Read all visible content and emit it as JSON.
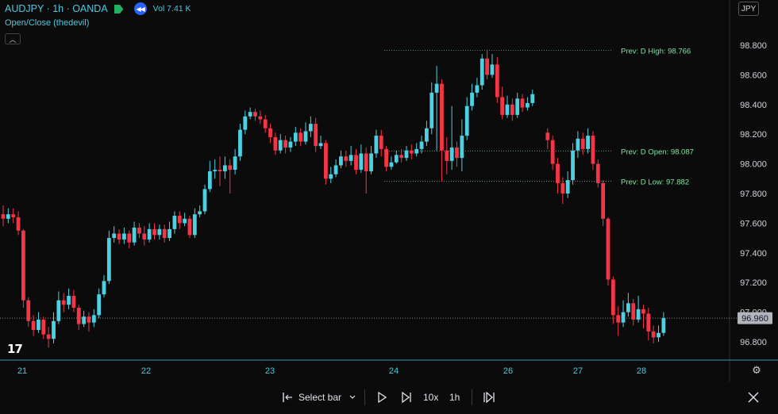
{
  "header": {
    "symbol": "AUDJPY · 1h · OANDA",
    "volume": "Vol 7.41 K",
    "indicator": "Open/Close (thedevil)"
  },
  "currency_button": "JPY",
  "bottom_bar": {
    "select_bar": "Select bar",
    "speed": "10x",
    "interval": "1h"
  },
  "colors": {
    "up": "#4dd0e1",
    "down": "#f23645",
    "axis_text": "#d1d4dc",
    "level_text": "#7ee8a0",
    "date_text": "#4fc9e0"
  },
  "chart_data": {
    "type": "candlestick",
    "symbol": "AUDJPY",
    "interval": "1h",
    "ylim": [
      96.7,
      98.9
    ],
    "y_ticks": [
      "98.800",
      "98.600",
      "98.400",
      "98.200",
      "98.000",
      "97.800",
      "97.600",
      "97.400",
      "97.200",
      "97.000",
      "96.800"
    ],
    "x_ticks": [
      "21",
      "22",
      "23",
      "24",
      "26",
      "27",
      "28"
    ],
    "current_price": "96.960",
    "levels": [
      {
        "label": "Prev: D High: 98.766",
        "value": 98.766
      },
      {
        "label": "Prev: D Open: 98.087",
        "value": 98.087
      },
      {
        "label": "Prev: D Low: 97.882",
        "value": 97.882
      }
    ],
    "candles": [
      [
        97.66,
        97.63,
        97.72,
        97.58
      ],
      [
        97.63,
        97.66,
        97.7,
        97.6
      ],
      [
        97.66,
        97.64,
        97.7,
        97.6
      ],
      [
        97.64,
        97.55,
        97.68,
        97.52
      ],
      [
        97.55,
        97.08,
        97.56,
        97.03
      ],
      [
        97.08,
        96.94,
        97.1,
        96.9
      ],
      [
        96.94,
        96.88,
        96.98,
        96.84
      ],
      [
        96.88,
        96.95,
        97.0,
        96.86
      ],
      [
        96.95,
        96.85,
        96.97,
        96.82
      ],
      [
        96.85,
        96.82,
        96.9,
        96.76
      ],
      [
        96.82,
        96.94,
        97.0,
        96.79
      ],
      [
        96.94,
        97.08,
        97.14,
        96.92
      ],
      [
        97.08,
        97.05,
        97.13,
        97.0
      ],
      [
        97.05,
        97.11,
        97.16,
        97.02
      ],
      [
        97.11,
        97.03,
        97.15,
        97.0
      ],
      [
        97.03,
        96.92,
        97.05,
        96.88
      ],
      [
        96.92,
        96.97,
        97.01,
        96.9
      ],
      [
        96.97,
        96.93,
        97.0,
        96.87
      ],
      [
        96.93,
        96.98,
        97.02,
        96.9
      ],
      [
        96.98,
        97.12,
        97.16,
        96.96
      ],
      [
        97.12,
        97.21,
        97.25,
        97.1
      ],
      [
        97.21,
        97.5,
        97.55,
        97.19
      ],
      [
        97.5,
        97.53,
        97.58,
        97.47
      ],
      [
        97.53,
        97.49,
        97.56,
        97.46
      ],
      [
        97.49,
        97.53,
        97.57,
        97.46
      ],
      [
        97.53,
        97.47,
        97.55,
        97.43
      ],
      [
        97.47,
        97.57,
        97.61,
        97.45
      ],
      [
        97.57,
        97.53,
        97.6,
        97.5
      ],
      [
        97.53,
        97.49,
        97.58,
        97.45
      ],
      [
        97.49,
        97.56,
        97.6,
        97.47
      ],
      [
        97.56,
        97.52,
        97.6,
        97.49
      ],
      [
        97.52,
        97.56,
        97.59,
        97.49
      ],
      [
        97.56,
        97.5,
        97.59,
        97.47
      ],
      [
        97.5,
        97.56,
        97.61,
        97.48
      ],
      [
        97.56,
        97.65,
        97.68,
        97.53
      ],
      [
        97.65,
        97.6,
        97.68,
        97.56
      ],
      [
        97.6,
        97.63,
        97.67,
        97.58
      ],
      [
        97.63,
        97.52,
        97.65,
        97.5
      ],
      [
        97.52,
        97.66,
        97.7,
        97.5
      ],
      [
        97.66,
        97.68,
        97.72,
        97.64
      ],
      [
        97.68,
        97.83,
        97.86,
        97.66
      ],
      [
        97.83,
        97.95,
        98.02,
        97.81
      ],
      [
        97.95,
        97.96,
        98.03,
        97.9
      ],
      [
        97.96,
        97.95,
        98.05,
        97.85
      ],
      [
        97.95,
        97.99,
        98.05,
        97.9
      ],
      [
        97.99,
        97.96,
        98.03,
        97.8
      ],
      [
        97.96,
        98.05,
        98.1,
        97.93
      ],
      [
        98.05,
        98.23,
        98.27,
        98.02
      ],
      [
        98.23,
        98.32,
        98.36,
        98.2
      ],
      [
        98.32,
        98.35,
        98.38,
        98.3
      ],
      [
        98.35,
        98.32,
        98.37,
        98.29
      ],
      [
        98.32,
        98.3,
        98.36,
        98.27
      ],
      [
        98.3,
        98.24,
        98.33,
        98.21
      ],
      [
        98.24,
        98.18,
        98.27,
        98.14
      ],
      [
        98.18,
        98.09,
        98.21,
        98.06
      ],
      [
        98.09,
        98.16,
        98.2,
        98.07
      ],
      [
        98.16,
        98.11,
        98.19,
        98.07
      ],
      [
        98.11,
        98.15,
        98.18,
        98.08
      ],
      [
        98.15,
        98.21,
        98.25,
        98.12
      ],
      [
        98.21,
        98.15,
        98.24,
        98.12
      ],
      [
        98.15,
        98.22,
        98.28,
        98.13
      ],
      [
        98.22,
        98.27,
        98.32,
        98.18
      ],
      [
        98.27,
        98.12,
        98.31,
        98.08
      ],
      [
        98.12,
        98.14,
        98.19,
        98.1
      ],
      [
        98.14,
        97.9,
        98.16,
        97.86
      ],
      [
        97.9,
        97.93,
        97.98,
        97.87
      ],
      [
        97.93,
        97.99,
        98.03,
        97.91
      ],
      [
        97.99,
        98.05,
        98.09,
        97.97
      ],
      [
        98.05,
        98.02,
        98.09,
        97.98
      ],
      [
        98.02,
        98.06,
        98.12,
        97.99
      ],
      [
        98.06,
        97.96,
        98.1,
        97.93
      ],
      [
        97.96,
        98.07,
        98.13,
        97.94
      ],
      [
        98.07,
        97.95,
        98.11,
        97.8
      ],
      [
        97.95,
        98.07,
        98.12,
        97.93
      ],
      [
        98.07,
        98.19,
        98.23,
        98.04
      ],
      [
        98.19,
        98.1,
        98.23,
        98.05
      ],
      [
        98.1,
        97.98,
        98.12,
        97.95
      ],
      [
        97.98,
        98.01,
        98.05,
        97.96
      ],
      [
        98.01,
        98.06,
        98.09,
        98.0
      ],
      [
        98.06,
        98.04,
        98.1,
        98.01
      ],
      [
        98.04,
        98.09,
        98.12,
        98.02
      ],
      [
        98.09,
        98.07,
        98.13,
        98.03
      ],
      [
        98.07,
        98.1,
        98.14,
        98.05
      ],
      [
        98.1,
        98.15,
        98.19,
        98.07
      ],
      [
        98.15,
        98.24,
        98.29,
        98.12
      ],
      [
        98.24,
        98.48,
        98.55,
        98.2
      ],
      [
        98.48,
        98.54,
        98.66,
        98.09
      ],
      [
        98.54,
        98.09,
        98.57,
        97.88
      ],
      [
        98.09,
        98.02,
        98.18,
        97.93
      ],
      [
        98.02,
        98.11,
        98.39,
        97.96
      ],
      [
        98.11,
        98.04,
        98.15,
        97.98
      ],
      [
        98.04,
        98.19,
        98.3,
        97.95
      ],
      [
        98.19,
        98.39,
        98.45,
        98.16
      ],
      [
        98.39,
        98.48,
        98.54,
        98.36
      ],
      [
        98.48,
        98.53,
        98.58,
        98.45
      ],
      [
        98.53,
        98.71,
        98.74,
        98.5
      ],
      [
        98.71,
        98.6,
        98.77,
        98.57
      ],
      [
        98.6,
        98.67,
        98.74,
        98.58
      ],
      [
        98.67,
        98.45,
        98.72,
        98.41
      ],
      [
        98.45,
        98.33,
        98.52,
        98.3
      ],
      [
        98.33,
        98.4,
        98.46,
        98.31
      ],
      [
        98.4,
        98.33,
        98.44,
        98.29
      ],
      [
        98.33,
        98.44,
        98.48,
        98.31
      ],
      [
        98.44,
        98.38,
        98.47,
        98.35
      ],
      [
        98.38,
        98.41,
        98.45,
        98.36
      ],
      [
        98.41,
        98.47,
        98.5,
        98.39
      ],
      null,
      null,
      [
        98.21,
        98.16,
        98.24,
        98.1
      ],
      [
        98.16,
        98.0,
        98.19,
        97.96
      ],
      [
        98.0,
        97.87,
        98.04,
        97.8
      ],
      [
        97.87,
        97.8,
        97.91,
        97.73
      ],
      [
        97.8,
        97.89,
        97.95,
        97.77
      ],
      [
        97.89,
        98.09,
        98.14,
        97.86
      ],
      [
        98.09,
        98.17,
        98.22,
        98.04
      ],
      [
        98.17,
        98.1,
        98.21,
        98.06
      ],
      [
        98.1,
        98.19,
        98.24,
        98.07
      ],
      [
        98.19,
        98.0,
        98.22,
        97.96
      ],
      [
        98.0,
        97.87,
        98.03,
        97.84
      ],
      [
        97.87,
        97.63,
        97.89,
        97.58
      ],
      [
        97.63,
        97.22,
        97.64,
        97.18
      ],
      [
        97.22,
        96.98,
        97.24,
        96.92
      ],
      [
        96.98,
        96.93,
        97.04,
        96.84
      ],
      [
        96.93,
        97.0,
        97.08,
        96.9
      ],
      [
        97.0,
        97.06,
        97.13,
        96.97
      ],
      [
        97.06,
        96.95,
        97.09,
        96.91
      ],
      [
        96.95,
        97.02,
        97.11,
        96.93
      ],
      [
        97.02,
        96.99,
        97.05,
        96.89
      ],
      [
        96.99,
        96.87,
        97.03,
        96.81
      ],
      [
        96.87,
        96.83,
        96.91,
        96.79
      ],
      [
        96.83,
        96.86,
        96.91,
        96.8
      ],
      [
        96.86,
        96.96,
        97.0,
        96.84
      ]
    ]
  }
}
